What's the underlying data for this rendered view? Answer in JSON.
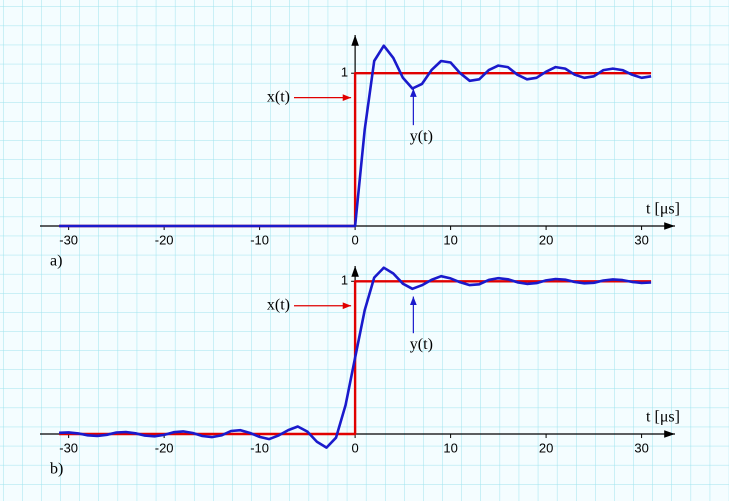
{
  "chart_data": [
    {
      "type": "line",
      "panel_label": "a)",
      "xlabel": "t [μs]",
      "xlim": [
        -33,
        33.5
      ],
      "ylim": [
        -0.17,
        1.25
      ],
      "xticks": [
        -30,
        -20,
        -10,
        0,
        10,
        20,
        30
      ],
      "yticks": [
        1
      ],
      "series": [
        {
          "name": "x(t)",
          "color": "#e00000",
          "x": [
            -31,
            0,
            0,
            31
          ],
          "values": [
            0,
            0,
            1,
            1
          ]
        },
        {
          "name": "y(t)",
          "color": "#1a1acc",
          "x": [
            -31,
            0,
            1,
            2,
            3,
            4,
            5,
            6,
            7,
            8,
            9,
            10,
            11,
            12,
            13,
            14,
            15,
            16,
            17,
            18,
            19,
            20,
            21,
            22,
            23,
            24,
            25,
            26,
            27,
            28,
            29,
            30,
            31
          ],
          "values": [
            0,
            0,
            0.63,
            1.08,
            1.18,
            1.1,
            0.97,
            0.9,
            0.93,
            1.02,
            1.08,
            1.07,
            1.0,
            0.95,
            0.96,
            1.02,
            1.05,
            1.04,
            0.99,
            0.96,
            0.97,
            1.01,
            1.04,
            1.03,
            0.99,
            0.97,
            0.98,
            1.02,
            1.03,
            1.02,
            0.99,
            0.97,
            0.98
          ]
        }
      ]
    },
    {
      "type": "line",
      "panel_label": "b)",
      "xlabel": "t [μs]",
      "xlim": [
        -33,
        33.5
      ],
      "ylim": [
        -0.17,
        1.1
      ],
      "xticks": [
        -30,
        -20,
        -10,
        0,
        10,
        20,
        30
      ],
      "yticks": [
        1
      ],
      "series": [
        {
          "name": "x(t)",
          "color": "#e00000",
          "x": [
            -31,
            0,
            0,
            31
          ],
          "values": [
            0,
            0,
            1,
            1
          ]
        },
        {
          "name": "y(t)",
          "color": "#1a1acc",
          "x": [
            -31,
            -30,
            -29,
            -28,
            -27,
            -26,
            -25,
            -24,
            -23,
            -22,
            -21,
            -20,
            -19,
            -18,
            -17,
            -16,
            -15,
            -14,
            -13,
            -12,
            -11,
            -10,
            -9,
            -8,
            -7,
            -6,
            -5,
            -4,
            -3,
            -2,
            -1,
            0,
            1,
            2,
            3,
            4,
            5,
            6,
            7,
            8,
            9,
            10,
            11,
            12,
            13,
            14,
            15,
            16,
            17,
            18,
            19,
            20,
            21,
            22,
            23,
            24,
            25,
            26,
            27,
            28,
            29,
            30,
            31
          ],
          "values": [
            0.008,
            0.011,
            0.004,
            -0.008,
            -0.012,
            -0.005,
            0.01,
            0.013,
            0.005,
            -0.01,
            -0.015,
            -0.006,
            0.012,
            0.017,
            0.007,
            -0.013,
            -0.02,
            -0.009,
            0.02,
            0.025,
            0.007,
            -0.019,
            -0.033,
            -0.009,
            0.026,
            0.049,
            0.016,
            -0.051,
            -0.089,
            -0.024,
            0.19,
            0.5,
            0.81,
            1.024,
            1.089,
            1.051,
            0.984,
            0.951,
            0.974,
            1.009,
            1.033,
            1.019,
            0.993,
            0.975,
            0.98,
            1.009,
            1.02,
            1.013,
            0.993,
            0.983,
            0.988,
            1.006,
            1.015,
            1.01,
            0.995,
            0.987,
            0.99,
            1.005,
            1.012,
            1.008,
            0.996,
            0.989,
            0.992
          ]
        }
      ]
    }
  ]
}
